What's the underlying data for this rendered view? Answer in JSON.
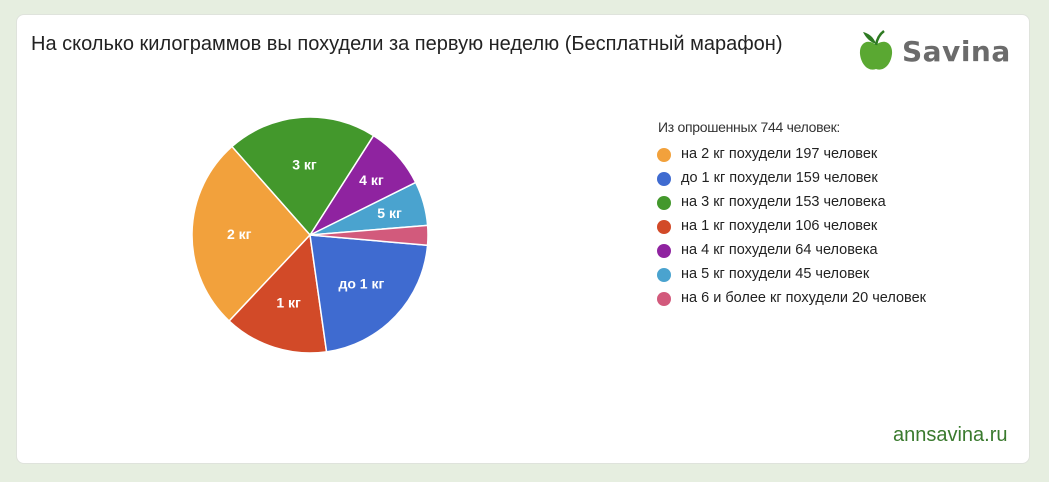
{
  "header": {
    "title": "На сколько килограммов вы похудели за первую неделю (Бесплатный марафон)"
  },
  "brand": {
    "name": "Savina",
    "logo_icon": "apple-icon",
    "site": "annsavina.ru",
    "apple_color": "#5aa832",
    "leaf_color": "#2e7a22"
  },
  "legend": {
    "title": "Из опрошенных 744 человек:"
  },
  "chart_data": {
    "type": "pie",
    "total": 744,
    "slices": [
      {
        "label": "5 кг",
        "value": 45,
        "color": "#4aa3cf",
        "legend": "на 5 кг похудели 45 человек"
      },
      {
        "label": "4 кг",
        "value": 64,
        "color": "#8f23a0",
        "legend": "на 4 кг похудели 64 человека"
      },
      {
        "label": "3 кг",
        "value": 153,
        "color": "#43982c",
        "legend": "на 3 кг похудели 153 человека"
      },
      {
        "label": "2 кг",
        "value": 197,
        "color": "#f2a13c",
        "legend": "на 2 кг похудели 197 человек"
      },
      {
        "label": "1 кг",
        "value": 106,
        "color": "#d24a28",
        "legend": "на 1 кг похудели 106 человек"
      },
      {
        "label": "до 1 кг",
        "value": 159,
        "color": "#3f6bd0",
        "legend": "до 1 кг похудели 159 человек"
      },
      {
        "label": "",
        "value": 20,
        "color": "#d25a7c",
        "legend": "на 6 и более кг похудели 20 человек"
      }
    ],
    "legend_order": [
      3,
      5,
      2,
      4,
      1,
      0,
      6
    ],
    "legend_position": "right"
  }
}
